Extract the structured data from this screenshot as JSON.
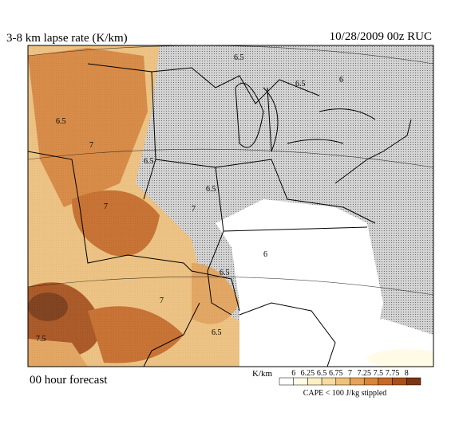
{
  "header": {
    "title": "3-8 km lapse rate (K/km)",
    "valid": "10/28/2009  00z  RUC"
  },
  "footer": {
    "forecast": "00 hour forecast",
    "note": "CAPE < 100 J/kg stippled"
  },
  "colorbar": {
    "unit": "K/km",
    "ticks": [
      6,
      6.25,
      6.5,
      6.75,
      7,
      7.25,
      7.5,
      7.75,
      8
    ],
    "colors": [
      "#ffffff",
      "#fffbe6",
      "#fdf0c4",
      "#f7dca0",
      "#efc27c",
      "#e5a35a",
      "#d9853c",
      "#c66a26",
      "#a85018",
      "#7a3610"
    ]
  },
  "map": {
    "contour_labels": [
      "6.5",
      "6.5",
      "6",
      "6.5",
      "7",
      "6.5",
      "7",
      "7",
      "6.5",
      "6",
      "6.5",
      "7",
      "7.5",
      "6.5"
    ]
  }
}
